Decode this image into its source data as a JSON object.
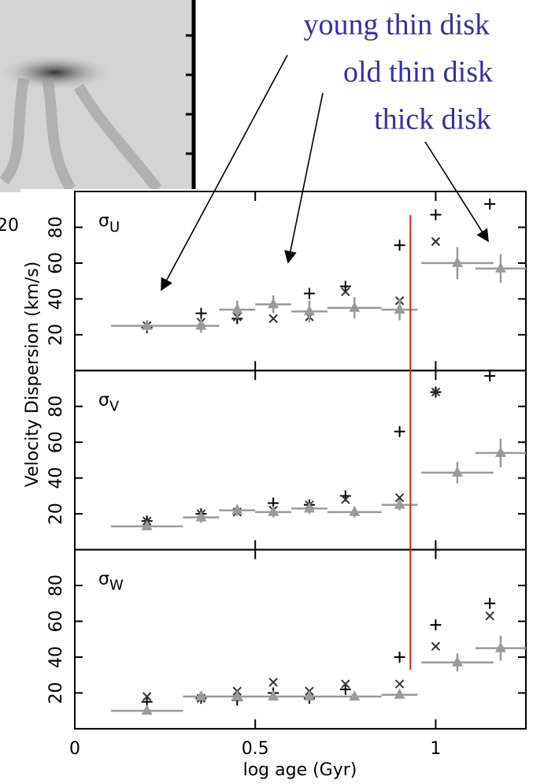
{
  "chart_data": {
    "type": "scatter",
    "ylabel": "Velocity Dispersion (km/s)",
    "xlabel": "log age (Gyr)",
    "xlim": [
      0,
      1.25
    ],
    "xticks": [
      0,
      0.5,
      1
    ],
    "ylim": [
      0,
      100
    ],
    "yticks": [
      20,
      40,
      60,
      80
    ],
    "image_fragment_label": "20",
    "reference_line": {
      "x": 0.93,
      "color": "#d62020"
    },
    "annotations": [
      {
        "text": "young thin disk",
        "color": "#333399"
      },
      {
        "text": "old thin disk",
        "color": "#333399"
      },
      {
        "text": "thick disk",
        "color": "#333399"
      }
    ],
    "panels": [
      {
        "symbol": "σ",
        "subscript": "U",
        "series": [
          {
            "marker": "plus",
            "color": "#000000",
            "x": [
              0.2,
              0.35,
              0.45,
              0.55,
              0.65,
              0.75,
              0.9,
              1.0,
              1.15
            ],
            "values": [
              24,
              32,
              29,
              37,
              43,
              47,
              70,
              87,
              93
            ]
          },
          {
            "marker": "cross",
            "color": "#333333",
            "x": [
              0.2,
              0.35,
              0.45,
              0.55,
              0.65,
              0.75,
              0.9,
              1.0,
              1.15
            ],
            "values": [
              25,
              27,
              30,
              29,
              30,
              44,
              39,
              72,
              null
            ]
          },
          {
            "marker": "triangle",
            "color": "#9a9a9a",
            "x": [
              0.2,
              0.35,
              0.45,
              0.55,
              0.65,
              0.775,
              0.9,
              1.06,
              1.18
            ],
            "xerr": [
              0.1,
              0.05,
              0.05,
              0.05,
              0.05,
              0.075,
              0.05,
              0.1,
              0.07
            ],
            "values": [
              25,
              25,
              34,
              37,
              33,
              35,
              34,
              60,
              57
            ],
            "yerr": [
              3,
              4,
              5,
              5,
              6,
              6,
              6,
              9,
              8
            ]
          }
        ]
      },
      {
        "symbol": "σ",
        "subscript": "V",
        "series": [
          {
            "marker": "plus",
            "color": "#000000",
            "x": [
              0.2,
              0.35,
              0.45,
              0.55,
              0.65,
              0.75,
              0.9,
              1.0,
              1.15
            ],
            "values": [
              16,
              20,
              22,
              26,
              25,
              30,
              66,
              88,
              97
            ]
          },
          {
            "marker": "cross",
            "color": "#333333",
            "x": [
              0.2,
              0.35,
              0.45,
              0.55,
              0.65,
              0.75,
              0.9,
              1.0,
              1.15
            ],
            "values": [
              16,
              20,
              21,
              22,
              25,
              28,
              29,
              88,
              null
            ]
          },
          {
            "marker": "triangle",
            "color": "#9a9a9a",
            "x": [
              0.2,
              0.35,
              0.45,
              0.55,
              0.65,
              0.775,
              0.9,
              1.06,
              1.18
            ],
            "xerr": [
              0.1,
              0.05,
              0.05,
              0.05,
              0.05,
              0.075,
              0.05,
              0.1,
              0.07
            ],
            "values": [
              13,
              18,
              22,
              21,
              23,
              21,
              25,
              43,
              54
            ],
            "yerr": [
              2,
              3,
              3,
              3,
              3,
              3,
              3,
              6,
              8
            ]
          }
        ]
      },
      {
        "symbol": "σ",
        "subscript": "W",
        "series": [
          {
            "marker": "plus",
            "color": "#000000",
            "x": [
              0.2,
              0.35,
              0.45,
              0.55,
              0.65,
              0.75,
              0.9,
              1.0,
              1.15
            ],
            "values": [
              15,
              17,
              16,
              20,
              17,
              22,
              40,
              58,
              70
            ]
          },
          {
            "marker": "cross",
            "color": "#333333",
            "x": [
              0.2,
              0.35,
              0.45,
              0.55,
              0.65,
              0.75,
              0.9,
              1.0,
              1.15
            ],
            "values": [
              18,
              17,
              21,
              26,
              21,
              25,
              25,
              46,
              63
            ]
          },
          {
            "marker": "triangle",
            "color": "#9a9a9a",
            "x": [
              0.2,
              0.35,
              0.45,
              0.55,
              0.65,
              0.775,
              0.9,
              1.06,
              1.18
            ],
            "xerr": [
              0.1,
              0.05,
              0.05,
              0.05,
              0.05,
              0.075,
              0.05,
              0.1,
              0.07
            ],
            "values": [
              10,
              18,
              18,
              18,
              18,
              18,
              19,
              37,
              45
            ],
            "yerr": [
              2,
              2,
              2,
              2,
              2,
              2,
              2,
              5,
              7
            ]
          }
        ]
      }
    ]
  }
}
